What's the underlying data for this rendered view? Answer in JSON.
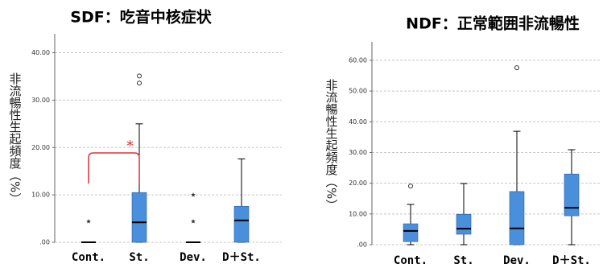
{
  "chart_data": [
    {
      "type": "box",
      "title": "SDF：吃音中核症状",
      "y_label": "非流暢性生起頻度（%）",
      "categories": [
        "Cont.",
        "St.",
        "Dev.",
        "D＋St."
      ],
      "color": "#4a8fdc",
      "grid": true,
      "annotation": "*",
      "annotation_color": "#e03030",
      "boxes": [
        {
          "min": 0,
          "q1": 0,
          "median": 0,
          "q3": 0,
          "max": 0,
          "outliers": [],
          "extremes": [
            4.4
          ]
        },
        {
          "min": 0,
          "q1": 0,
          "median": 4.2,
          "q3": 10.5,
          "max": 25,
          "outliers": [
            33.6,
            35.1
          ],
          "extremes": []
        },
        {
          "min": 0,
          "q1": 0,
          "median": 0,
          "q3": 0,
          "max": 0,
          "outliers": [],
          "extremes": [
            4.4,
            10
          ]
        },
        {
          "min": 0,
          "q1": 0,
          "median": 4.6,
          "q3": 7.6,
          "max": 17.6,
          "outliers": [],
          "extremes": []
        }
      ],
      "ylim": [
        0,
        44
      ],
      "yticks": [
        {
          "value": 0,
          "label": ".00"
        },
        {
          "value": 10,
          "label": "10.00"
        },
        {
          "value": 20,
          "label": "20.00"
        },
        {
          "value": 30,
          "label": "30.00"
        },
        {
          "value": 40,
          "label": "40.00"
        }
      ]
    },
    {
      "type": "box",
      "title": "NDF：正常範囲非流暢性",
      "y_label": "非流暢性生起頻度（%）",
      "categories": [
        "Cont.",
        "St.",
        "Dev.",
        "D＋St."
      ],
      "color": "#4a8fdc",
      "grid": true,
      "boxes": [
        {
          "min": 0,
          "q1": 1,
          "median": 4.5,
          "q3": 6.8,
          "max": 13.1,
          "outliers": [
            19.1
          ],
          "extremes": []
        },
        {
          "min": 0,
          "q1": 3.4,
          "median": 5.2,
          "q3": 9.9,
          "max": 19.9,
          "outliers": [],
          "extremes": []
        },
        {
          "min": 0,
          "q1": 0,
          "median": 5.3,
          "q3": 17.3,
          "max": 36.9,
          "outliers": [
            57.6
          ],
          "extremes": []
        },
        {
          "min": 0,
          "q1": 9.4,
          "median": 12,
          "q3": 23,
          "max": 30.9,
          "outliers": [],
          "extremes": []
        }
      ],
      "ylim": [
        0,
        66
      ],
      "yticks": [
        {
          "value": 0,
          "label": ".00"
        },
        {
          "value": 10,
          "label": "10.00"
        },
        {
          "value": 20,
          "label": "20.00"
        },
        {
          "value": 30,
          "label": "30.00"
        },
        {
          "value": 40,
          "label": "40.00"
        },
        {
          "value": 50,
          "label": "50.00"
        },
        {
          "value": 60,
          "label": "60.00"
        }
      ]
    }
  ]
}
